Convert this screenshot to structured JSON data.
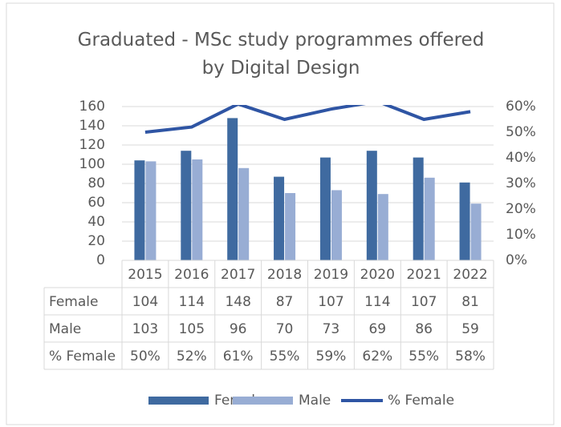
{
  "chart_data": {
    "type": "bar",
    "title": "Graduated - MSc study programmes offered by Digital Design",
    "categories": [
      "2015",
      "2016",
      "2017",
      "2018",
      "2019",
      "2020",
      "2021",
      "2022"
    ],
    "series": [
      {
        "name": "Female",
        "color": "#3f6aa0",
        "values": [
          104,
          114,
          148,
          87,
          107,
          114,
          107,
          81
        ]
      },
      {
        "name": "Male",
        "color": "#98add4",
        "values": [
          103,
          105,
          96,
          70,
          73,
          69,
          86,
          59
        ]
      },
      {
        "name": "% Female",
        "color": "#2f55a4",
        "type": "line",
        "axis": "y2",
        "values": [
          50,
          52,
          61,
          55,
          59,
          62,
          55,
          58
        ],
        "value_labels": [
          "50%",
          "52%",
          "61%",
          "55%",
          "59%",
          "62%",
          "55%",
          "58%"
        ]
      }
    ],
    "ylim": [
      0,
      160
    ],
    "yticks": [
      0,
      20,
      40,
      60,
      80,
      100,
      120,
      140,
      160
    ],
    "y2lim": [
      0,
      60
    ],
    "y2ticks": [
      {
        "value": 0,
        "label": "0%"
      },
      {
        "value": 10,
        "label": "10%"
      },
      {
        "value": 20,
        "label": "20%"
      },
      {
        "value": 30,
        "label": "30%"
      },
      {
        "value": 40,
        "label": "40%"
      },
      {
        "value": 50,
        "label": "50%"
      },
      {
        "value": 60,
        "label": "60%"
      }
    ],
    "grid": true,
    "data_table": true,
    "legend": "bottom"
  }
}
